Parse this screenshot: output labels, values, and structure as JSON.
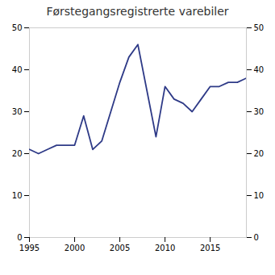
{
  "chart_data": {
    "type": "line",
    "title": "Førstegangsregistrerte varebiler",
    "x": [
      1995,
      1996,
      1997,
      1998,
      1999,
      2000,
      2001,
      2002,
      2003,
      2004,
      2005,
      2006,
      2007,
      2008,
      2009,
      2010,
      2011,
      2012,
      2013,
      2014,
      2015,
      2016,
      2017,
      2018,
      2019
    ],
    "values": [
      21,
      20,
      21,
      22,
      22,
      22,
      29,
      21,
      23,
      30,
      37,
      43,
      46,
      35,
      24,
      36,
      33,
      32,
      30,
      33,
      36,
      36,
      37,
      37,
      38
    ],
    "color": "#2E3A87",
    "xlim": [
      1995,
      2019
    ],
    "xticks": [
      1995,
      2000,
      2005,
      2010,
      2015
    ],
    "ylim": [
      0,
      50
    ],
    "yticks": [
      0,
      10,
      20,
      30,
      40,
      50
    ],
    "grid": false
  }
}
